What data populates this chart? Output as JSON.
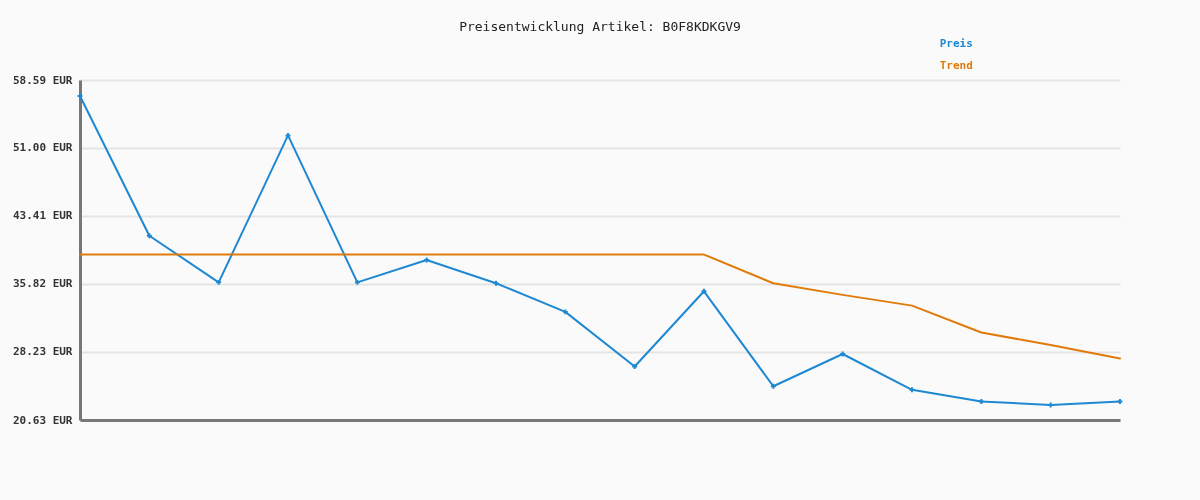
{
  "chart_data": {
    "type": "line",
    "title": "Preisentwicklung Artikel: B0F8KDKGV9",
    "categories": [
      null,
      null,
      null,
      null,
      null,
      null,
      null,
      null,
      null,
      null,
      null,
      null,
      null,
      null,
      null,
      null
    ],
    "series": [
      {
        "name": "Preis",
        "color": "#1e88d2",
        "marker": "cross",
        "values": [
          56.8,
          41.2,
          36.0,
          52.4,
          36.0,
          38.5,
          35.9,
          32.7,
          26.6,
          35.0,
          24.4,
          28.0,
          24.0,
          22.7,
          22.3,
          22.7
        ]
      },
      {
        "name": "Trend",
        "color": "#e07b0a",
        "values": [
          39.1,
          39.1,
          39.1,
          39.1,
          39.1,
          39.1,
          39.1,
          39.1,
          39.1,
          39.1,
          35.9,
          34.6,
          33.4,
          30.4,
          29.0,
          27.5
        ]
      }
    ],
    "ylim": [
      20.63,
      58.59
    ],
    "yticks": [
      {
        "value": 20.63,
        "label": "20.63 EUR"
      },
      {
        "value": 28.23,
        "label": "28.23 EUR"
      },
      {
        "value": 35.82,
        "label": "35.82 EUR"
      },
      {
        "value": 43.41,
        "label": "43.41 EUR"
      },
      {
        "value": 51.0,
        "label": "51.00 EUR"
      },
      {
        "value": 58.59,
        "label": "58.59 EUR"
      }
    ],
    "grid": "y",
    "legend": "top right",
    "tick_labels": "y"
  }
}
